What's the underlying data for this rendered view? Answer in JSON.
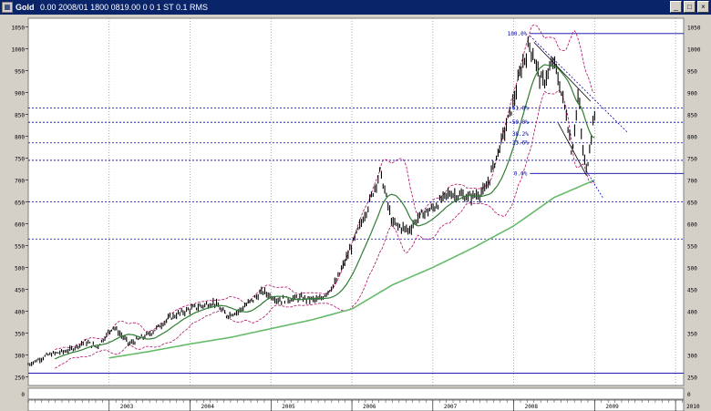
{
  "window": {
    "title": "Gold",
    "info_text": "0.00 2008/01 1800 0819.00 0 0 1 ST 0.1 RMS",
    "minimize_label": "_",
    "maximize_label": "□",
    "close_label": "×",
    "icon_name": "chart-window-icon"
  },
  "chart_data": {
    "type": "candlestick",
    "title": "Gold",
    "xlabel": "",
    "ylabel": "",
    "ylim": [
      230,
      1070
    ],
    "y_ticks": [
      250,
      300,
      350,
      400,
      450,
      500,
      550,
      600,
      650,
      700,
      750,
      800,
      850,
      900,
      950,
      1000,
      1050
    ],
    "y_tick_labels": [
      "250",
      "300",
      "350",
      "400",
      "450",
      "500",
      "550",
      "600",
      "650",
      "700",
      "750",
      "800",
      "850",
      "900",
      "950",
      "1000",
      "1050"
    ],
    "xlim": [
      2002.0,
      2010.1
    ],
    "x_ticks": [
      2003,
      2004,
      2005,
      2006,
      2007,
      2008,
      2009,
      2010
    ],
    "x_tick_labels": [
      "2003",
      "2004",
      "2005",
      "2006",
      "2007",
      "2008",
      "2009",
      "2010"
    ],
    "price_anchors": [
      [
        2002.0,
        278
      ],
      [
        2002.25,
        300
      ],
      [
        2002.5,
        310
      ],
      [
        2002.7,
        330
      ],
      [
        2002.85,
        318
      ],
      [
        2003.05,
        365
      ],
      [
        2003.25,
        325
      ],
      [
        2003.5,
        348
      ],
      [
        2003.75,
        385
      ],
      [
        2004.0,
        405
      ],
      [
        2004.3,
        420
      ],
      [
        2004.45,
        390
      ],
      [
        2004.6,
        400
      ],
      [
        2004.9,
        445
      ],
      [
        2005.1,
        425
      ],
      [
        2005.35,
        430
      ],
      [
        2005.6,
        425
      ],
      [
        2005.8,
        465
      ],
      [
        2006.0,
        550
      ],
      [
        2006.2,
        640
      ],
      [
        2006.35,
        720
      ],
      [
        2006.5,
        600
      ],
      [
        2006.7,
        585
      ],
      [
        2006.85,
        620
      ],
      [
        2007.0,
        635
      ],
      [
        2007.2,
        670
      ],
      [
        2007.45,
        660
      ],
      [
        2007.65,
        675
      ],
      [
        2007.85,
        790
      ],
      [
        2008.0,
        880
      ],
      [
        2008.1,
        960
      ],
      [
        2008.2,
        1010
      ],
      [
        2008.35,
        920
      ],
      [
        2008.5,
        970
      ],
      [
        2008.65,
        850
      ],
      [
        2008.72,
        760
      ],
      [
        2008.8,
        900
      ],
      [
        2008.85,
        770
      ],
      [
        2008.9,
        720
      ],
      [
        2008.97,
        820
      ],
      [
        2009.0,
        860
      ]
    ],
    "series": [
      {
        "name": "",
        "color": "#000000",
        "style": "candlestick"
      },
      {
        "name": "",
        "color": "#2e7d32",
        "style": "moving-average-short"
      },
      {
        "name": "",
        "color": "#66bb6a",
        "style": "moving-average-long"
      },
      {
        "name": "",
        "color": "#b0106a",
        "style": "bollinger-bands"
      }
    ],
    "long_ma_anchors": [
      [
        2003.0,
        293
      ],
      [
        2003.5,
        308
      ],
      [
        2004.0,
        325
      ],
      [
        2004.5,
        340
      ],
      [
        2005.0,
        360
      ],
      [
        2005.5,
        380
      ],
      [
        2006.0,
        405
      ],
      [
        2006.5,
        460
      ],
      [
        2007.0,
        500
      ],
      [
        2007.5,
        545
      ],
      [
        2008.0,
        595
      ],
      [
        2008.5,
        660
      ],
      [
        2009.0,
        700
      ]
    ],
    "horizontal_lines": [
      {
        "value": 1035,
        "color": "#0000aa",
        "style": "solid",
        "label": "100.0%"
      },
      {
        "value": 865,
        "color": "#0000aa",
        "style": "dashed",
        "label": ""
      },
      {
        "value": 832,
        "color": "#0000aa",
        "style": "dashed",
        "label": ""
      },
      {
        "value": 785,
        "color": "#0000aa",
        "style": "dashed",
        "label": ""
      },
      {
        "value": 745,
        "color": "#0000aa",
        "style": "dashed",
        "label": ""
      },
      {
        "value": 715,
        "color": "#0000aa",
        "style": "solid",
        "label": "0.0%"
      },
      {
        "value": 650,
        "color": "#0000aa",
        "style": "dashed",
        "label": ""
      },
      {
        "value": 565,
        "color": "#0000aa",
        "style": "dashed",
        "label": ""
      },
      {
        "value": 258,
        "color": "#0000aa",
        "style": "solid",
        "label": ""
      }
    ],
    "fib_labels": [
      "61.8%",
      "50.0%",
      "38.2%",
      "23.6%"
    ],
    "fib_values": [
      865,
      832,
      805,
      785
    ],
    "trend_lines": [
      {
        "from": [
          2008.2,
          1030
        ],
        "to": [
          2009.4,
          810
        ],
        "color": "#0000aa",
        "style": "dashed"
      },
      {
        "from": [
          2008.25,
          1015
        ],
        "to": [
          2008.95,
          880
        ],
        "color": "#000000",
        "style": "solid"
      },
      {
        "from": [
          2008.55,
          830
        ],
        "to": [
          2008.9,
          710
        ],
        "color": "#000000",
        "style": "solid"
      },
      {
        "from": [
          2008.9,
          720
        ],
        "to": [
          2009.1,
          660
        ],
        "color": "#0000aa",
        "style": "dashed"
      }
    ],
    "grid": "vertical-dotted",
    "lower_pane": {
      "ylim": [
        0,
        1
      ],
      "y_tick_labels": [
        "0",
        "0"
      ]
    }
  }
}
